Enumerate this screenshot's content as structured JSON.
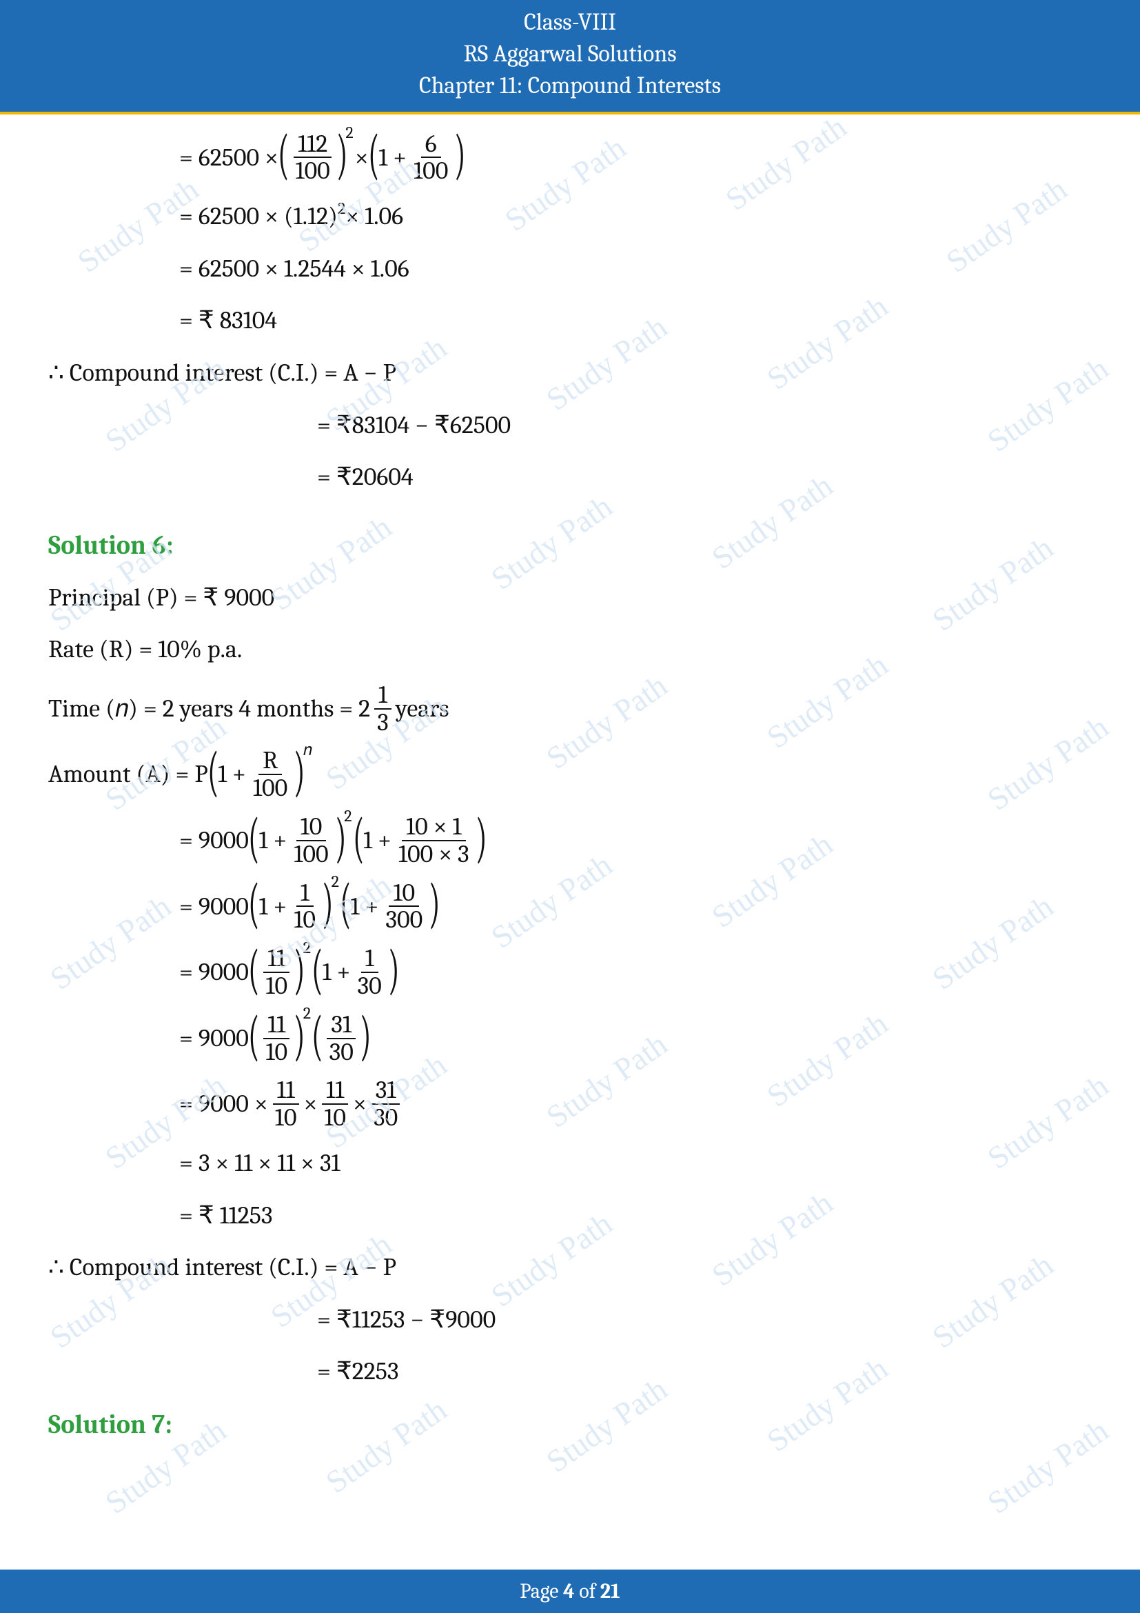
{
  "header": {
    "line1": "Class-VIII",
    "line2": "RS Aggarwal Solutions",
    "line3": "Chapter 11: Compound Interests"
  },
  "sol5": {
    "step1_a": "= 62500 ×",
    "step1_frac1_num": "112",
    "step1_frac1_den": "100",
    "step1_exp": "2",
    "step1_b": "×",
    "step1_c": "1 +",
    "step1_frac2_num": "6",
    "step1_frac2_den": "100",
    "step2": "= 62500 × (1.12)",
    "step2_exp": "2",
    "step2_b": " × 1.06",
    "step3": "= 62500 × 1.2544 × 1.06",
    "step4": "= ₹ 83104",
    "ci_line": "∴ Compound interest (C.I.) = A − P",
    "ci_step2": "= ₹83104 − ₹62500",
    "ci_step3": "= ₹20604"
  },
  "sol6": {
    "title": "Solution 6:",
    "principal": "Principal (P) = ₹ 9000",
    "rate": "Rate (R) = 10% p.a.",
    "time_a": "Time (𝑛) = 2 years 4 months = 2",
    "time_frac_num": "1",
    "time_frac_den": "3",
    "time_b": " years",
    "amount_a": "Amount (A) = P",
    "amount_b": "1 +",
    "amount_frac_num": "R",
    "amount_frac_den": "100",
    "amount_exp": "𝑛",
    "s1_a": "= 9000",
    "s1_b": "1 +",
    "s1_f1n": "10",
    "s1_f1d": "100",
    "s1_exp": "2",
    "s1_c": "1 +",
    "s1_f2n": "10 × 1",
    "s1_f2d": "100 × 3",
    "s2_a": "= 9000",
    "s2_b": "1 +",
    "s2_f1n": "1",
    "s2_f1d": "10",
    "s2_exp": "2",
    "s2_c": "1 +",
    "s2_f2n": "10",
    "s2_f2d": "300",
    "s3_a": "= 9000",
    "s3_f1n": "11",
    "s3_f1d": "10",
    "s3_exp": "2",
    "s3_b": "1 +",
    "s3_f2n": "1",
    "s3_f2d": "30",
    "s4_a": "= 9000",
    "s4_f1n": "11",
    "s4_f1d": "10",
    "s4_exp": "2",
    "s4_f2n": "31",
    "s4_f2d": "30",
    "s5_a": "= 9000 ×",
    "s5_f1n": "11",
    "s5_f1d": "10",
    "s5_b": "×",
    "s5_f2n": "11",
    "s5_f2d": "10",
    "s5_c": "×",
    "s5_f3n": "31",
    "s5_f3d": "30",
    "s6": "= 3 × 11 × 11 × 31",
    "s7": "= ₹ 11253",
    "ci_line": "∴ Compound interest (C.I.) = A − P",
    "ci_s2": "= ₹11253 − ₹9000",
    "ci_s3": "= ₹2253"
  },
  "sol7": {
    "title": "Solution 7:"
  },
  "footer": {
    "a": "Page ",
    "b": "4",
    "c": " of ",
    "d": "21"
  },
  "watermark": "Study Path",
  "colors": {
    "header_bg": "#1f6cb5",
    "accent": "#f2b705",
    "solution": "#2e9e3f",
    "text": "#111111",
    "watermark": "#d6e6f5"
  }
}
